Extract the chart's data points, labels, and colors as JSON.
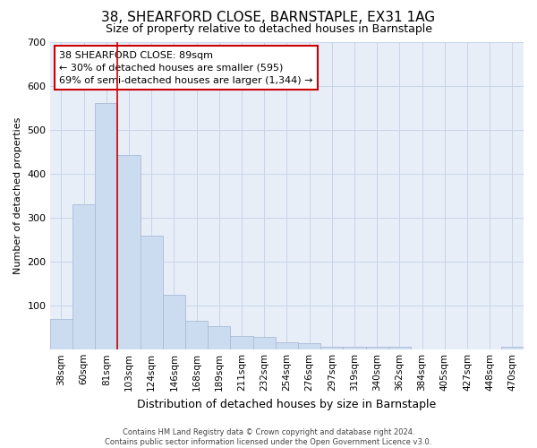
{
  "title": "38, SHEARFORD CLOSE, BARNSTAPLE, EX31 1AG",
  "subtitle": "Size of property relative to detached houses in Barnstaple",
  "xlabel": "Distribution of detached houses by size in Barnstaple",
  "ylabel": "Number of detached properties",
  "categories": [
    "38sqm",
    "60sqm",
    "81sqm",
    "103sqm",
    "124sqm",
    "146sqm",
    "168sqm",
    "189sqm",
    "211sqm",
    "232sqm",
    "254sqm",
    "276sqm",
    "297sqm",
    "319sqm",
    "340sqm",
    "362sqm",
    "384sqm",
    "405sqm",
    "427sqm",
    "448sqm",
    "470sqm"
  ],
  "values": [
    70,
    330,
    560,
    443,
    258,
    125,
    65,
    52,
    30,
    28,
    16,
    13,
    5,
    5,
    5,
    5,
    0,
    0,
    0,
    0,
    5
  ],
  "bar_color": "#ccdcf0",
  "bar_edgecolor": "#aabbd8",
  "grid_color": "#c8d4e8",
  "background_color": "#e8eef8",
  "red_line_index": 2,
  "annotation_line1": "38 SHEARFORD CLOSE: 89sqm",
  "annotation_line2": "← 30% of detached houses are smaller (595)",
  "annotation_line3": "69% of semi-detached houses are larger (1,344) →",
  "annotation_box_facecolor": "#ffffff",
  "annotation_box_edgecolor": "#cc0000",
  "ylim": [
    0,
    700
  ],
  "yticks": [
    0,
    100,
    200,
    300,
    400,
    500,
    600,
    700
  ],
  "title_fontsize": 11,
  "subtitle_fontsize": 9,
  "xlabel_fontsize": 9,
  "ylabel_fontsize": 8,
  "footer_line1": "Contains HM Land Registry data © Crown copyright and database right 2024.",
  "footer_line2": "Contains public sector information licensed under the Open Government Licence v3.0."
}
